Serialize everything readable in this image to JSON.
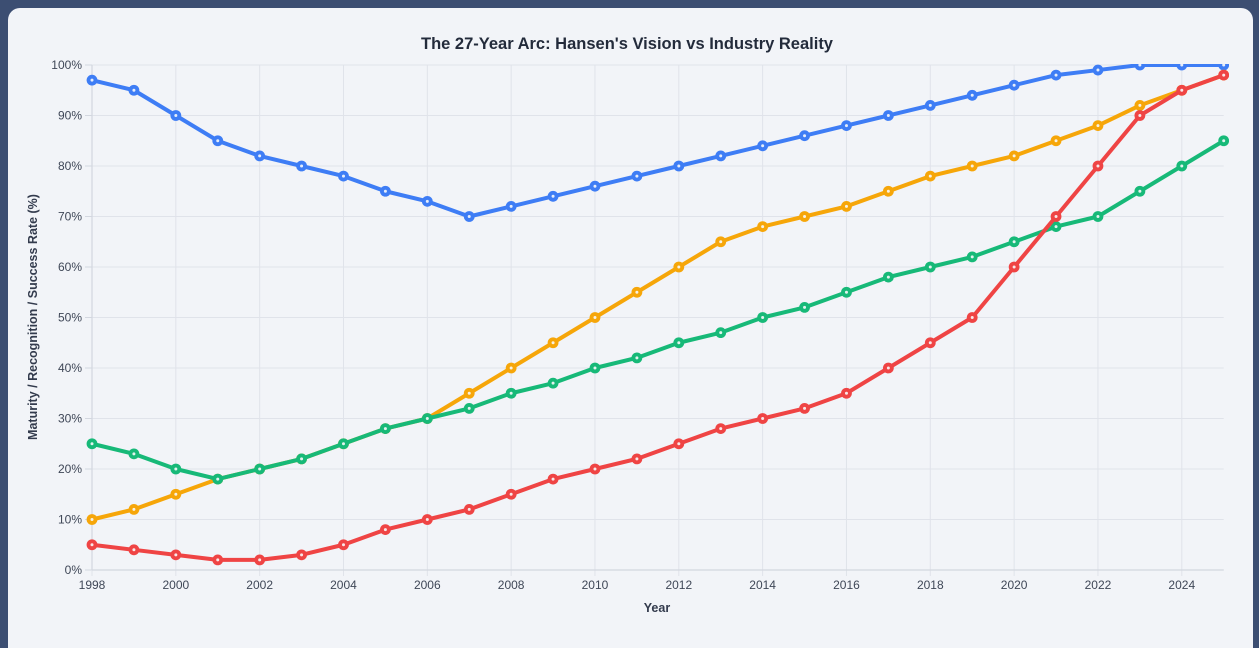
{
  "window": {
    "background_color": "#3c4e72",
    "card_background_color": "#f2f4f8"
  },
  "chart_data": {
    "type": "line",
    "title": "The 27-Year Arc: Hansen's Vision vs Industry Reality",
    "xlabel": "Year",
    "ylabel": "Maturity / Recognition / Success Rate (%)",
    "grid": true,
    "legend": "none",
    "ylim": [
      0,
      100
    ],
    "y_tick_labels": [
      "0%",
      "10%",
      "20%",
      "30%",
      "40%",
      "50%",
      "60%",
      "70%",
      "80%",
      "90%",
      "100%"
    ],
    "x_tick_labels": [
      "1998",
      "2000",
      "2002",
      "2004",
      "2006",
      "2008",
      "2010",
      "2012",
      "2014",
      "2016",
      "2018",
      "2020",
      "2022",
      "2024"
    ],
    "x": [
      1998,
      1999,
      2000,
      2001,
      2002,
      2003,
      2004,
      2005,
      2006,
      2007,
      2008,
      2009,
      2010,
      2011,
      2012,
      2013,
      2014,
      2015,
      2016,
      2017,
      2018,
      2019,
      2020,
      2021,
      2022,
      2023,
      2024,
      2025
    ],
    "series": [
      {
        "name": "blue",
        "color": "#3e7df5",
        "values": [
          97,
          95,
          90,
          85,
          82,
          80,
          78,
          75,
          73,
          70,
          72,
          74,
          76,
          78,
          80,
          82,
          84,
          86,
          88,
          90,
          92,
          94,
          96,
          98,
          99,
          100,
          100,
          100
        ]
      },
      {
        "name": "orange",
        "color": "#f6a609",
        "values": [
          10,
          12,
          15,
          18,
          20,
          22,
          25,
          28,
          30,
          35,
          40,
          45,
          50,
          55,
          60,
          65,
          68,
          70,
          72,
          75,
          78,
          80,
          82,
          85,
          88,
          92,
          95,
          98
        ]
      },
      {
        "name": "green",
        "color": "#17b978",
        "values": [
          25,
          23,
          20,
          18,
          20,
          22,
          25,
          28,
          30,
          32,
          35,
          37,
          40,
          42,
          45,
          47,
          50,
          52,
          55,
          58,
          60,
          62,
          65,
          68,
          70,
          75,
          80,
          85
        ]
      },
      {
        "name": "red",
        "color": "#ef4444",
        "values": [
          5,
          4,
          3,
          2,
          2,
          3,
          5,
          8,
          10,
          12,
          15,
          18,
          20,
          22,
          25,
          28,
          30,
          32,
          35,
          40,
          45,
          50,
          60,
          70,
          80,
          90,
          95,
          98
        ]
      }
    ],
    "gridline_color": "#e0e3ea",
    "axis_line_color": "#d3d7df"
  }
}
